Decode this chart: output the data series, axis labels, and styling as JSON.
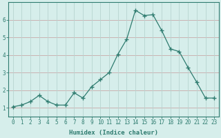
{
  "x": [
    0,
    1,
    2,
    3,
    4,
    5,
    6,
    7,
    8,
    9,
    10,
    11,
    12,
    13,
    14,
    15,
    16,
    17,
    18,
    19,
    20,
    21,
    22,
    23
  ],
  "y": [
    1.05,
    1.15,
    1.35,
    1.7,
    1.35,
    1.15,
    1.15,
    1.85,
    1.55,
    2.2,
    2.6,
    3.0,
    4.05,
    4.9,
    6.55,
    6.25,
    6.3,
    5.4,
    4.35,
    4.2,
    3.3,
    2.45,
    1.55,
    1.55
  ],
  "line_color": "#2e7b6f",
  "marker": "+",
  "marker_size": 4,
  "bg_color": "#d6eeeb",
  "grid_color_h": "#c8a8a8",
  "grid_color_v": "#b8d4d0",
  "axis_color": "#2e7b6f",
  "xlabel": "Humidex (Indice chaleur)",
  "xlim": [
    -0.5,
    23.5
  ],
  "ylim": [
    0.5,
    7.0
  ],
  "yticks": [
    1,
    2,
    3,
    4,
    5,
    6
  ],
  "xticks": [
    0,
    1,
    2,
    3,
    4,
    5,
    6,
    7,
    8,
    9,
    10,
    11,
    12,
    13,
    14,
    15,
    16,
    17,
    18,
    19,
    20,
    21,
    22,
    23
  ],
  "xlabel_fontsize": 6.5,
  "tick_fontsize": 5.5
}
